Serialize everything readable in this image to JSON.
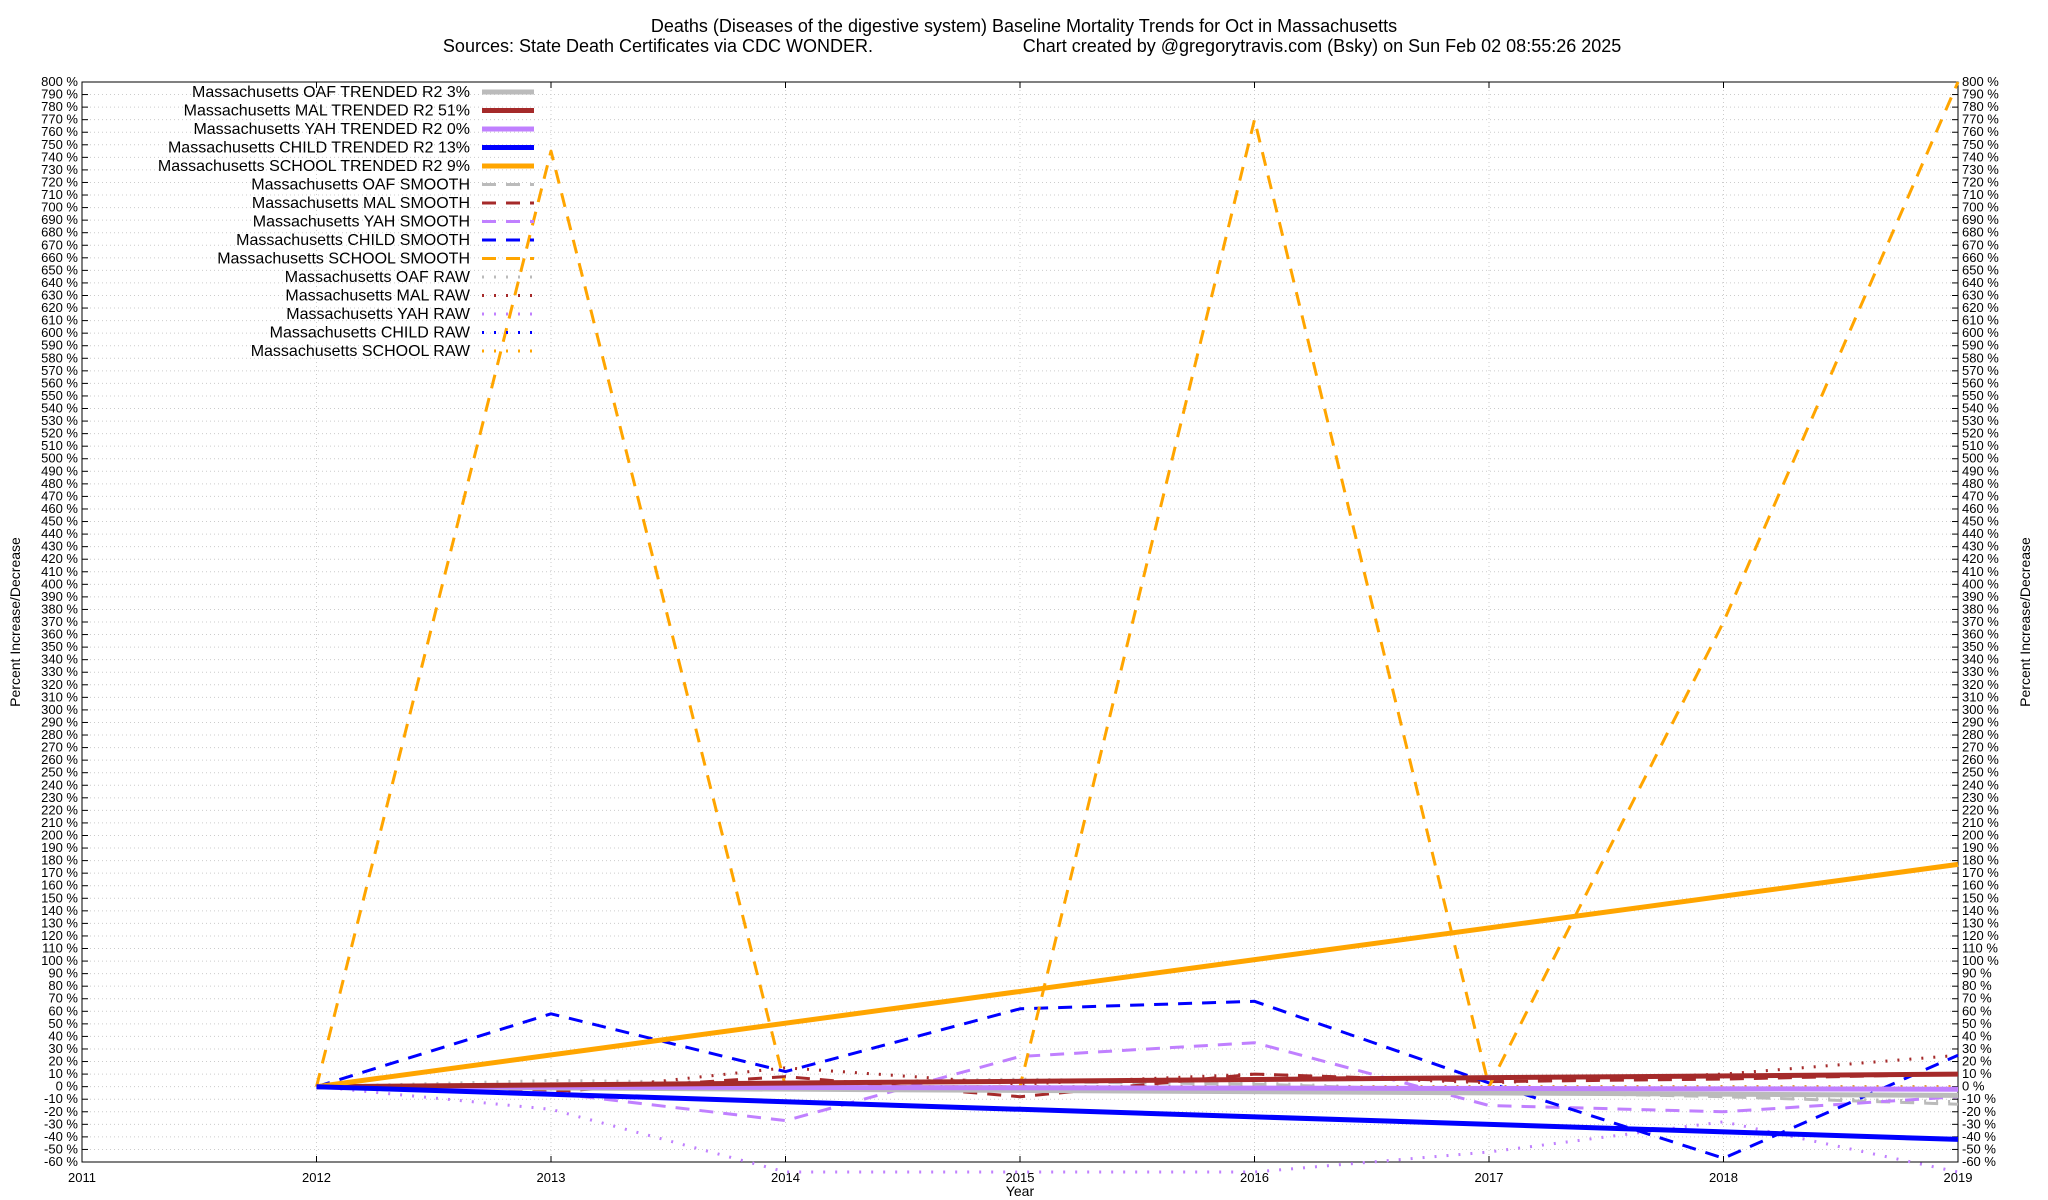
{
  "chart_data": {
    "type": "line",
    "title": "Deaths (Diseases of the digestive system)  Baseline Mortality Trends for Oct in Massachusetts",
    "subtitle_left": "Sources: State Death Certificates via CDC WONDER.",
    "subtitle_right": "Chart created by @gregorytravis.com (Bsky) on Sun Feb 02 08:55:26 2025",
    "xlabel": "Year",
    "ylabel_left": "Percent Increase/Decrease",
    "ylabel_right": "Percent Increase/Decrease",
    "xlim": [
      2011,
      2019
    ],
    "ylim": [
      -60,
      800
    ],
    "x_ticks": [
      2011,
      2012,
      2013,
      2014,
      2015,
      2016,
      2017,
      2018,
      2019
    ],
    "y_tick_step": 10,
    "y_tick_suffix": " %",
    "grid": true,
    "legend_position": "top-left",
    "series": [
      {
        "name": "Massachusetts OAF TRENDED R2  3%",
        "style": "solid",
        "color": "#bbbbbb",
        "x": [
          2012,
          2019
        ],
        "y": [
          0,
          -7
        ]
      },
      {
        "name": "Massachusetts MAL TRENDED R2  51%",
        "style": "solid",
        "color": "#a52a2a",
        "x": [
          2012,
          2019
        ],
        "y": [
          0,
          10
        ]
      },
      {
        "name": "Massachusetts YAH TRENDED R2  0%",
        "style": "solid",
        "color": "#c080ff",
        "x": [
          2012,
          2019
        ],
        "y": [
          0,
          -2
        ]
      },
      {
        "name": "Massachusetts CHILD TRENDED R2  13%",
        "style": "solid",
        "color": "#0000ff",
        "x": [
          2012,
          2019
        ],
        "y": [
          0,
          -42
        ]
      },
      {
        "name": "Massachusetts SCHOOL TRENDED R2  9%",
        "style": "solid",
        "color": "#ffa500",
        "x": [
          2012,
          2019
        ],
        "y": [
          0,
          177
        ]
      },
      {
        "name": "Massachusetts OAF SMOOTH",
        "style": "dashed",
        "color": "#bbbbbb",
        "x": [
          2012,
          2013,
          2014,
          2015,
          2016,
          2017,
          2018,
          2019
        ],
        "y": [
          0,
          2,
          2,
          4,
          2,
          -4,
          -8,
          -14
        ]
      },
      {
        "name": "Massachusetts MAL SMOOTH",
        "style": "dashed",
        "color": "#a52a2a",
        "x": [
          2012,
          2013,
          2014,
          2015,
          2016,
          2017,
          2018,
          2019
        ],
        "y": [
          0,
          -4,
          8,
          -8,
          10,
          4,
          6,
          10
        ]
      },
      {
        "name": "Massachusetts YAH SMOOTH",
        "style": "dashed",
        "color": "#c080ff",
        "x": [
          2012,
          2013,
          2014,
          2015,
          2016,
          2017,
          2018,
          2019
        ],
        "y": [
          0,
          -5,
          -27,
          24,
          35,
          -15,
          -20,
          -8
        ]
      },
      {
        "name": "Massachusetts CHILD SMOOTH",
        "style": "dashed",
        "color": "#0000ff",
        "x": [
          2012,
          2013,
          2014,
          2015,
          2016,
          2017,
          2018,
          2019
        ],
        "y": [
          0,
          58,
          12,
          62,
          68,
          3,
          -57,
          25
        ]
      },
      {
        "name": "Massachusetts SCHOOL SMOOTH",
        "style": "dashed",
        "color": "#ffa500",
        "x": [
          2012,
          2013,
          2014,
          2015,
          2016,
          2017,
          2018,
          2019
        ],
        "y": [
          0,
          745,
          0,
          0,
          770,
          0,
          370,
          800
        ]
      },
      {
        "name": "Massachusetts OAF RAW",
        "style": "dotted",
        "color": "#bbbbbb",
        "x": [
          2012,
          2013,
          2014,
          2015,
          2016,
          2017,
          2018,
          2019
        ],
        "y": [
          0,
          5,
          3,
          6,
          3,
          -4,
          -8,
          -12
        ]
      },
      {
        "name": "Massachusetts MAL RAW",
        "style": "dotted",
        "color": "#a52a2a",
        "x": [
          2012,
          2013,
          2014,
          2015,
          2016,
          2017,
          2018,
          2019
        ],
        "y": [
          0,
          -5,
          15,
          2,
          10,
          3,
          10,
          25
        ]
      },
      {
        "name": "Massachusetts YAH RAW",
        "style": "dotted",
        "color": "#c080ff",
        "x": [
          2012,
          2013,
          2014,
          2015,
          2016,
          2017,
          2018,
          2019
        ],
        "y": [
          0,
          -18,
          -68,
          -68,
          -68,
          -52,
          -28,
          -68
        ]
      },
      {
        "name": "Massachusetts CHILD RAW",
        "style": "dotted",
        "color": "#0000ff",
        "x": [
          2012,
          2013,
          2014,
          2015,
          2016,
          2017,
          2018,
          2019
        ],
        "y": [
          0,
          0,
          0,
          0,
          0,
          0,
          0,
          0
        ]
      },
      {
        "name": "Massachusetts SCHOOL RAW",
        "style": "dotted",
        "color": "#ffa500",
        "x": [
          2012,
          2013,
          2014,
          2015,
          2016,
          2017,
          2018,
          2019
        ],
        "y": [
          0,
          0,
          0,
          0,
          0,
          0,
          0,
          0
        ]
      }
    ]
  }
}
